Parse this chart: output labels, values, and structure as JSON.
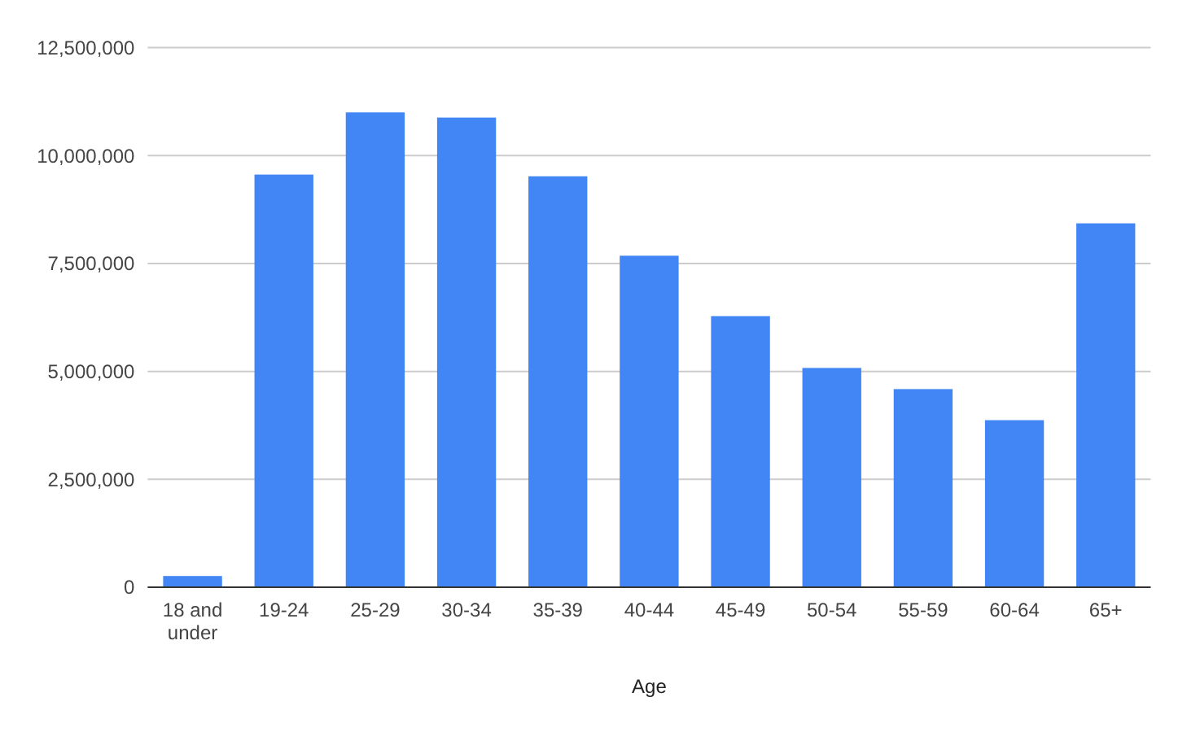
{
  "chart_data": {
    "type": "bar",
    "xlabel": "Age",
    "categories": [
      "18 and under",
      "19-24",
      "25-29",
      "30-34",
      "35-39",
      "40-44",
      "45-49",
      "50-54",
      "55-59",
      "60-64",
      "65+"
    ],
    "values": [
      260000,
      9560000,
      11000000,
      10880000,
      9520000,
      7680000,
      6280000,
      5080000,
      4590000,
      3870000,
      8430000
    ],
    "color": "#4285f4",
    "ylim": [
      0,
      12500000
    ],
    "yticks": [
      {
        "value": 0,
        "label": "0"
      },
      {
        "value": 2500000,
        "label": "2,500,000"
      },
      {
        "value": 5000000,
        "label": "5,000,000"
      },
      {
        "value": 7500000,
        "label": "7,500,000"
      },
      {
        "value": 10000000,
        "label": "10,000,000"
      },
      {
        "value": 12500000,
        "label": "12,500,000"
      }
    ],
    "grid": "y"
  }
}
